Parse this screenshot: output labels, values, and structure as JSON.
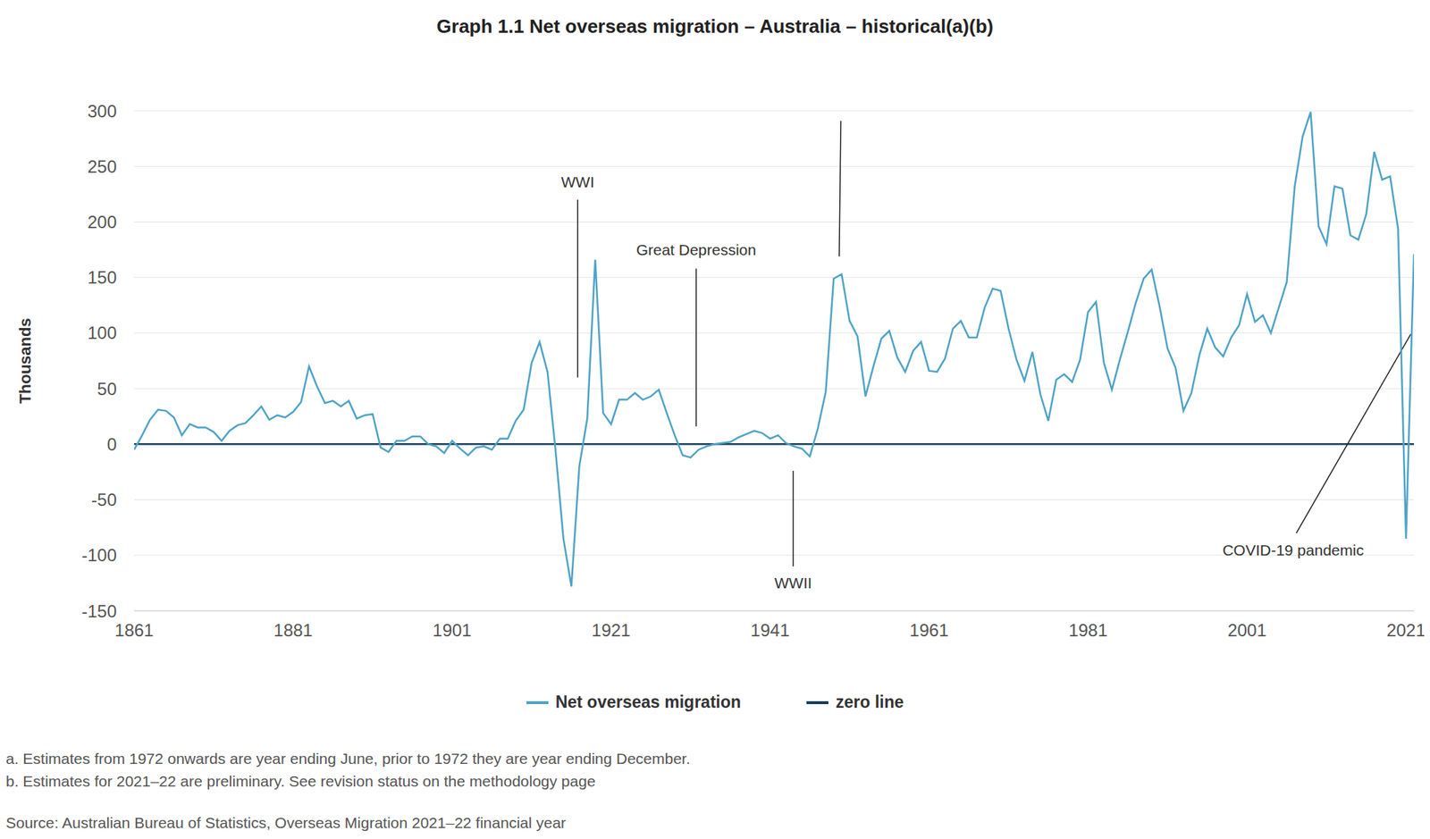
{
  "chart_data": {
    "type": "line",
    "title": "Graph 1.1 Net overseas migration – Australia – historical(a)(b)",
    "y_label": "Thousands",
    "x": [
      1861,
      1862,
      1863,
      1864,
      1865,
      1866,
      1867,
      1868,
      1869,
      1870,
      1871,
      1872,
      1873,
      1874,
      1875,
      1876,
      1877,
      1878,
      1879,
      1880,
      1881,
      1882,
      1883,
      1884,
      1885,
      1886,
      1887,
      1888,
      1889,
      1890,
      1891,
      1892,
      1893,
      1894,
      1895,
      1896,
      1897,
      1898,
      1899,
      1900,
      1901,
      1902,
      1903,
      1904,
      1905,
      1906,
      1907,
      1908,
      1909,
      1910,
      1911,
      1912,
      1913,
      1914,
      1915,
      1916,
      1917,
      1918,
      1919,
      1920,
      1921,
      1922,
      1923,
      1924,
      1925,
      1926,
      1927,
      1928,
      1929,
      1930,
      1931,
      1932,
      1933,
      1934,
      1935,
      1936,
      1937,
      1938,
      1939,
      1940,
      1941,
      1942,
      1943,
      1944,
      1945,
      1946,
      1947,
      1948,
      1949,
      1950,
      1951,
      1952,
      1953,
      1954,
      1955,
      1956,
      1957,
      1958,
      1959,
      1960,
      1961,
      1962,
      1963,
      1964,
      1965,
      1966,
      1967,
      1968,
      1969,
      1970,
      1971,
      1972,
      1973,
      1974,
      1975,
      1976,
      1977,
      1978,
      1979,
      1980,
      1981,
      1982,
      1983,
      1984,
      1985,
      1986,
      1987,
      1988,
      1989,
      1990,
      1991,
      1992,
      1993,
      1994,
      1995,
      1996,
      1997,
      1998,
      1999,
      2000,
      2001,
      2002,
      2003,
      2004,
      2005,
      2006,
      2007,
      2008,
      2009,
      2010,
      2011,
      2012,
      2013,
      2014,
      2015,
      2016,
      2017,
      2018,
      2019,
      2020,
      2021,
      2022
    ],
    "series": [
      {
        "name": "Net overseas migration",
        "color": "#4fa3c7",
        "values": [
          -5,
          8,
          22,
          31,
          30,
          24,
          8,
          18,
          15,
          15,
          11,
          3,
          12,
          17,
          19,
          26,
          34,
          22,
          26,
          24,
          29,
          38,
          70,
          52,
          37,
          39,
          34,
          39,
          23,
          26,
          27,
          -3,
          -7,
          3,
          3,
          7,
          7,
          0,
          -2,
          -8,
          3,
          -4,
          -10,
          -3,
          -2,
          -5,
          5,
          5,
          21,
          31,
          73,
          92,
          65,
          -5,
          -85,
          -128,
          -20,
          23,
          166,
          28,
          18,
          40,
          40,
          46,
          40,
          43,
          49,
          28,
          8,
          -10,
          -12,
          -5,
          -2,
          0,
          1,
          2,
          6,
          9,
          12,
          10,
          5,
          8,
          1,
          -2,
          -4,
          -11,
          14,
          47,
          149,
          153,
          111,
          97,
          43,
          70,
          95,
          102,
          78,
          65,
          84,
          92,
          66,
          65,
          77,
          104,
          111,
          96,
          96,
          123,
          140,
          138,
          104,
          76,
          57,
          83,
          45,
          21,
          58,
          63,
          56,
          76,
          119,
          128,
          73,
          49,
          76,
          101,
          127,
          149,
          157,
          124,
          86,
          69,
          30,
          46,
          80,
          104,
          87,
          79,
          96,
          107,
          135,
          110,
          116,
          100,
          123,
          146,
          232,
          277,
          299,
          196,
          180,
          232,
          230,
          188,
          184,
          207,
          263,
          238,
          241,
          194,
          -85,
          171
        ]
      }
    ],
    "reference_lines": [
      {
        "name": "zero line",
        "value": 0,
        "color": "#173e5a"
      }
    ],
    "xlim": [
      1861,
      2022
    ],
    "xticks": [
      1861,
      1881,
      1901,
      1921,
      1941,
      1961,
      1981,
      2001,
      2021
    ],
    "ylim": [
      -150,
      300
    ],
    "yticks": [
      -150,
      -100,
      -50,
      0,
      50,
      100,
      150,
      200,
      250,
      300
    ],
    "grid": true,
    "annotations": [
      {
        "text": "WWI"
      },
      {
        "text": "Great Depression"
      },
      {
        "text": "WWII"
      },
      {
        "text": "COVID-19 pandemic"
      }
    ],
    "notes": [
      "a. Estimates from 1972 onwards are year ending June, prior to 1972 they are year ending December.",
      "b. Estimates for 2021–22 are preliminary. See revision status on the methodology page"
    ],
    "source": "Source: Australian Bureau of Statistics, Overseas Migration 2021–22 financial year"
  }
}
